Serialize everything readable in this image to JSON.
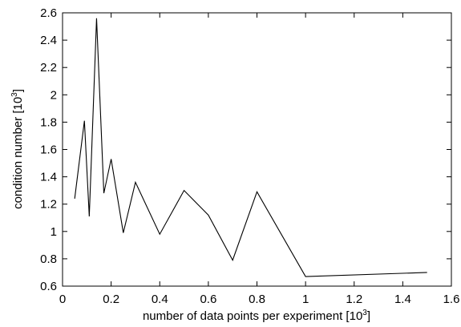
{
  "chart_data": {
    "type": "line",
    "title": "",
    "xlabel": "number of data points per experiment [10",
    "xlabel_exp": "3",
    "xlabel_suffix": "]",
    "ylabel": "condition number [10",
    "ylabel_exp": "3",
    "ylabel_suffix": "]",
    "xlim": [
      0,
      1.6
    ],
    "ylim": [
      0.6,
      2.6
    ],
    "x_ticks": [
      0,
      0.2,
      0.4,
      0.6,
      0.8,
      1,
      1.2,
      1.4,
      1.6
    ],
    "x_tick_labels": [
      "0",
      "0.2",
      "0.4",
      "0.6",
      "0.8",
      "1",
      "1.2",
      "1.4",
      "1.6"
    ],
    "y_ticks": [
      0.6,
      0.8,
      1,
      1.2,
      1.4,
      1.6,
      1.8,
      2,
      2.2,
      2.4,
      2.6
    ],
    "y_tick_labels": [
      "0.6",
      "0.8",
      "1",
      "1.2",
      "1.4",
      "1.6",
      "1.8",
      "2",
      "2.2",
      "2.4",
      "2.6"
    ],
    "grid": false,
    "legend": "none",
    "line_color": "#000000",
    "series": [
      {
        "x": [
          0.05,
          0.09,
          0.11,
          0.14,
          0.17,
          0.2,
          0.25,
          0.3,
          0.4,
          0.5,
          0.6,
          0.7,
          0.8,
          1.0,
          1.5
        ],
        "values": [
          1.24,
          1.81,
          1.11,
          2.56,
          1.28,
          1.53,
          0.99,
          1.36,
          0.98,
          1.3,
          1.12,
          0.79,
          1.29,
          0.67,
          0.7
        ]
      }
    ]
  }
}
